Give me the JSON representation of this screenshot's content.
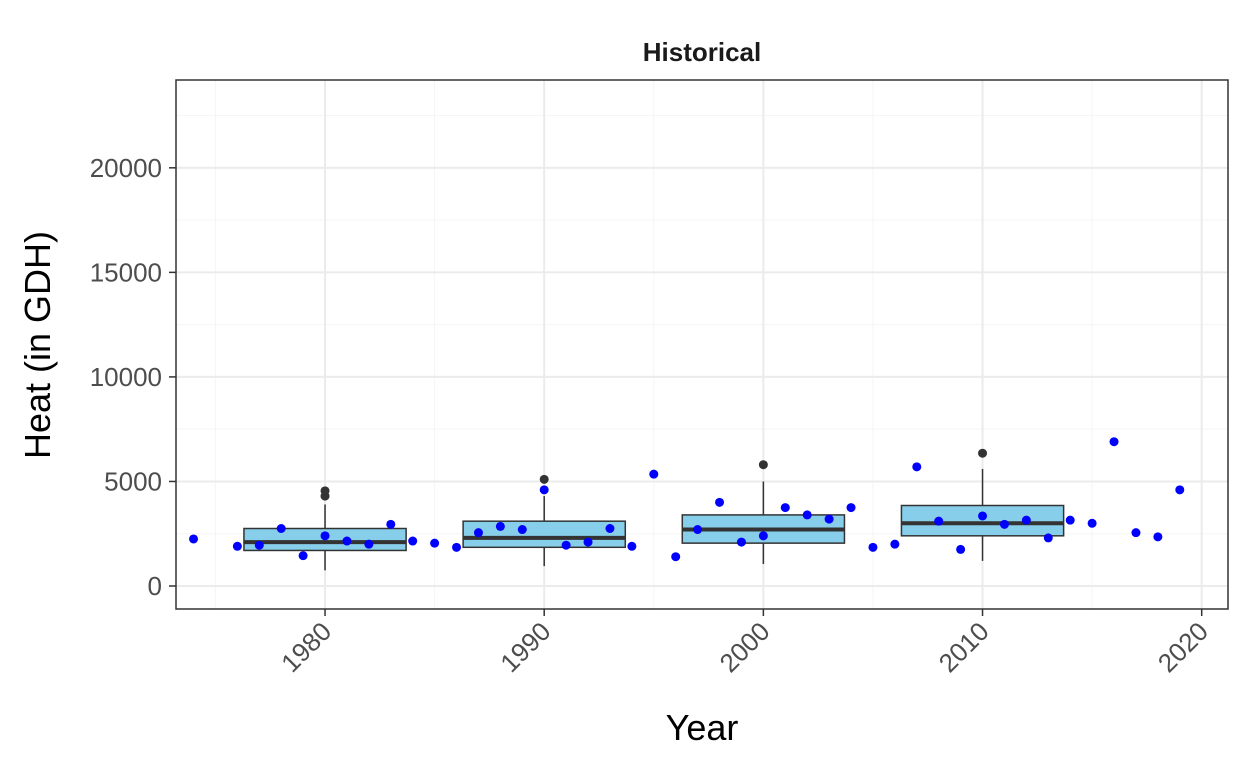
{
  "chart_data": {
    "type": "box",
    "title": "Historical",
    "xlabel": "Year",
    "ylabel": "Heat (in GDH)",
    "xlim": [
      1973.2,
      2021.2
    ],
    "ylim": [
      -1100,
      24200
    ],
    "x_ticks": [
      1980,
      1990,
      2000,
      2010,
      2020
    ],
    "y_ticks": [
      0,
      5000,
      10000,
      15000,
      20000
    ],
    "grid": true,
    "legend": "none",
    "colors": {
      "box_fill": "#87ceeb",
      "box_stroke": "#333333",
      "point": "#0000ff",
      "outlier": "#333333",
      "grid_major": "#ebebeb",
      "grid_minor": "#f5f5f5",
      "panel_border": "#333333"
    },
    "boxes": [
      {
        "x": 1980,
        "whisker_low": 750,
        "q1": 1700,
        "median": 2100,
        "q3": 2750,
        "whisker_high": 3900,
        "outliers": [
          4300,
          4550
        ]
      },
      {
        "x": 1990,
        "whisker_low": 950,
        "q1": 1850,
        "median": 2300,
        "q3": 3100,
        "whisker_high": 4300,
        "outliers": [
          5100
        ]
      },
      {
        "x": 2000,
        "whisker_low": 1050,
        "q1": 2050,
        "median": 2700,
        "q3": 3400,
        "whisker_high": 5000,
        "outliers": [
          5800
        ]
      },
      {
        "x": 2010,
        "whisker_low": 1200,
        "q1": 2400,
        "median": 3000,
        "q3": 3850,
        "whisker_high": 5600,
        "outliers": [
          6350
        ]
      }
    ],
    "points": [
      {
        "x": 1974,
        "y": 2250
      },
      {
        "x": 1976,
        "y": 1900
      },
      {
        "x": 1977,
        "y": 1950
      },
      {
        "x": 1978,
        "y": 2750
      },
      {
        "x": 1979,
        "y": 1450
      },
      {
        "x": 1980,
        "y": 2400
      },
      {
        "x": 1981,
        "y": 2150
      },
      {
        "x": 1982,
        "y": 2000
      },
      {
        "x": 1983,
        "y": 2950
      },
      {
        "x": 1984,
        "y": 2150
      },
      {
        "x": 1985,
        "y": 2050
      },
      {
        "x": 1986,
        "y": 1850
      },
      {
        "x": 1987,
        "y": 2550
      },
      {
        "x": 1988,
        "y": 2850
      },
      {
        "x": 1989,
        "y": 2700
      },
      {
        "x": 1990,
        "y": 4600
      },
      {
        "x": 1991,
        "y": 1950
      },
      {
        "x": 1992,
        "y": 2100
      },
      {
        "x": 1993,
        "y": 2750
      },
      {
        "x": 1994,
        "y": 1900
      },
      {
        "x": 1995,
        "y": 5350
      },
      {
        "x": 1996,
        "y": 1400
      },
      {
        "x": 1997,
        "y": 2700
      },
      {
        "x": 1998,
        "y": 4000
      },
      {
        "x": 1999,
        "y": 2100
      },
      {
        "x": 2000,
        "y": 2400
      },
      {
        "x": 2001,
        "y": 3750
      },
      {
        "x": 2002,
        "y": 3400
      },
      {
        "x": 2003,
        "y": 3200
      },
      {
        "x": 2004,
        "y": 3750
      },
      {
        "x": 2005,
        "y": 1850
      },
      {
        "x": 2006,
        "y": 2000
      },
      {
        "x": 2007,
        "y": 5700
      },
      {
        "x": 2008,
        "y": 3100
      },
      {
        "x": 2009,
        "y": 1750
      },
      {
        "x": 2010,
        "y": 3350
      },
      {
        "x": 2011,
        "y": 2950
      },
      {
        "x": 2012,
        "y": 3150
      },
      {
        "x": 2013,
        "y": 2300
      },
      {
        "x": 2014,
        "y": 3150
      },
      {
        "x": 2015,
        "y": 3000
      },
      {
        "x": 2016,
        "y": 6900
      },
      {
        "x": 2017,
        "y": 2550
      },
      {
        "x": 2018,
        "y": 2350
      },
      {
        "x": 2019,
        "y": 4600
      }
    ]
  }
}
